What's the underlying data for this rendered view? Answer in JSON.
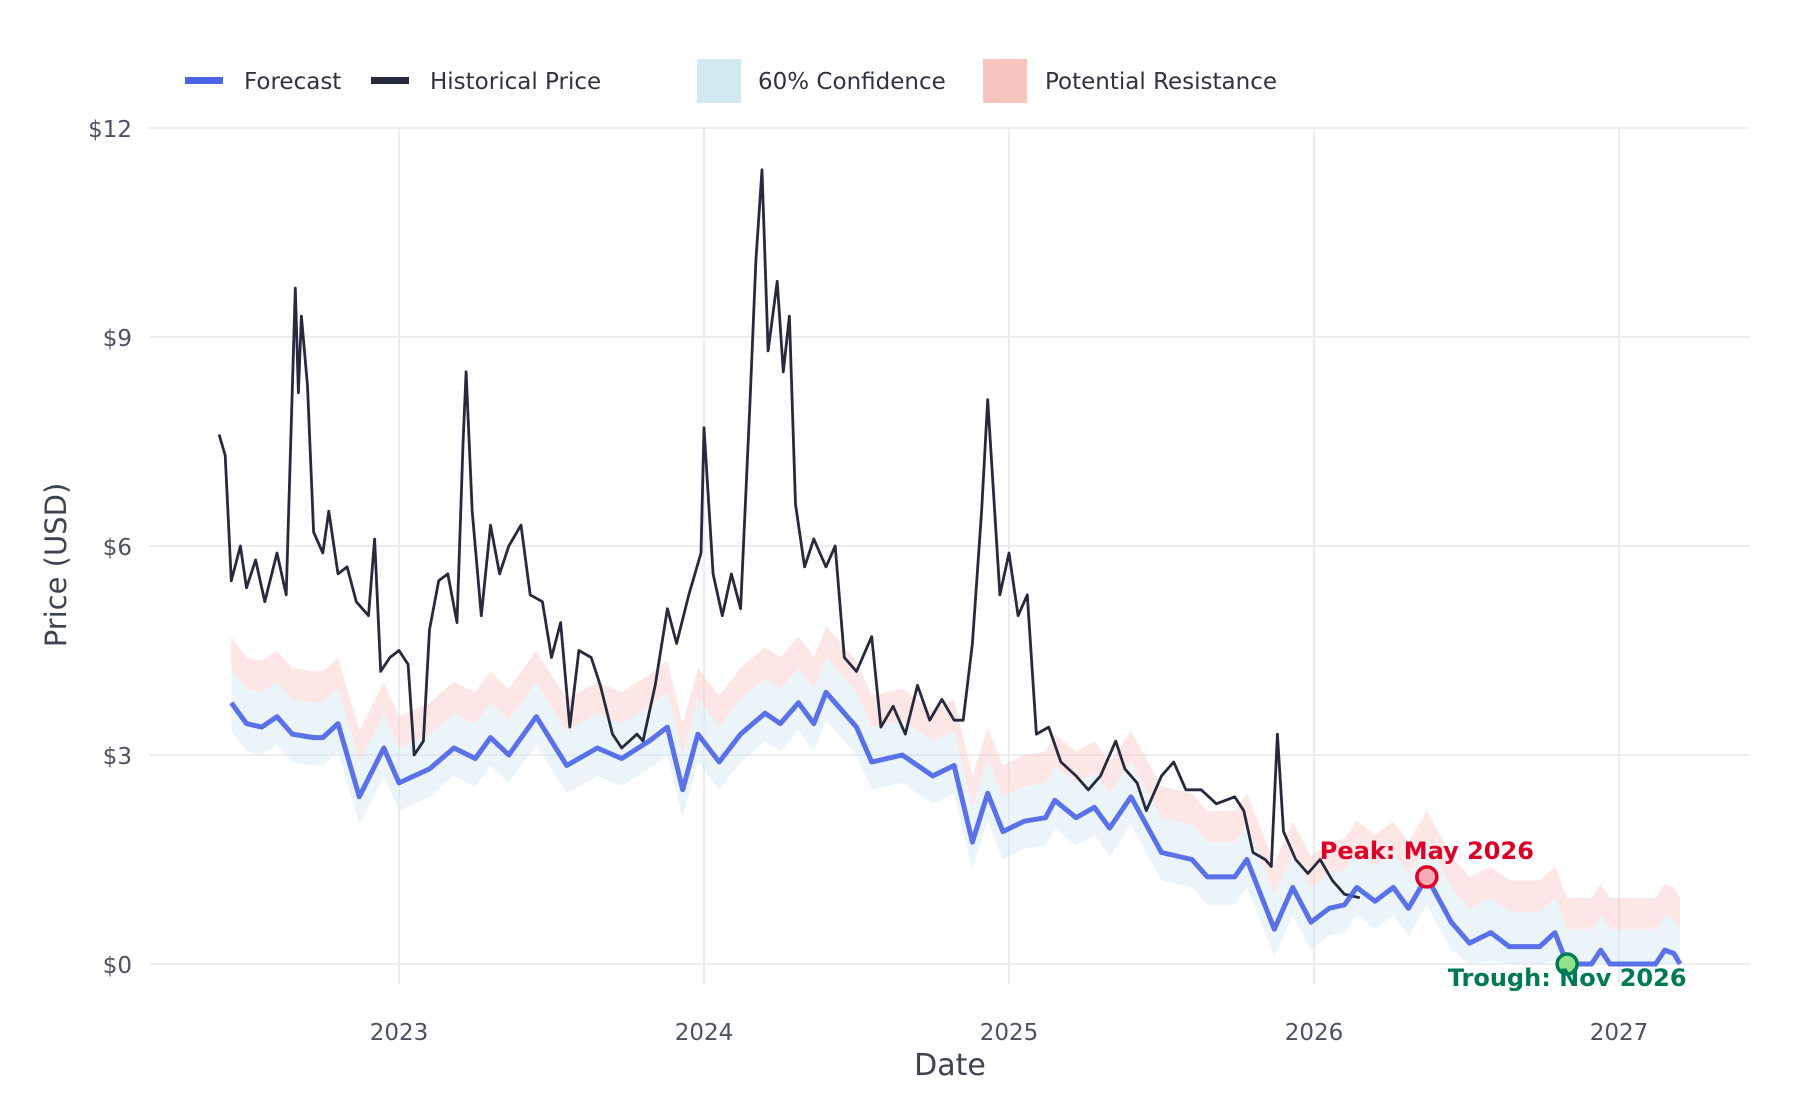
{
  "chart_data": {
    "type": "line",
    "title": "",
    "xlabel": "Date",
    "ylabel": "Price (USD)",
    "xlim": [
      2022.2,
      2027.43
    ],
    "ylim": [
      -0.55,
      12.05
    ],
    "x_ticks": [
      2023,
      2024,
      2025,
      2026,
      2027
    ],
    "x_tick_labels": [
      "2023",
      "2024",
      "2025",
      "2026",
      "2027"
    ],
    "y_ticks": [
      0,
      3,
      6,
      9,
      12
    ],
    "y_tick_labels": [
      "$0",
      "$3",
      "$6",
      "$9",
      "$12"
    ],
    "grid": true,
    "legend_position": "top-left",
    "legend": [
      {
        "label": "Forecast",
        "kind": "line",
        "color": "#4a63e7"
      },
      {
        "label": "Historical Price",
        "kind": "line",
        "color": "#272a3f"
      },
      {
        "label": "60% Confidence",
        "kind": "band",
        "color": "#d3e9f1"
      },
      {
        "label": "Potential Resistance",
        "kind": "band",
        "color": "#f7c4c1"
      }
    ],
    "confidence_band_offsets": [
      -0.4,
      0.5
    ],
    "resistance_band_offsets": [
      0.5,
      0.95
    ],
    "series": [
      {
        "name": "Historical Price",
        "color": "#272a3f",
        "points": [
          [
            2022.41,
            7.6
          ],
          [
            2022.43,
            7.3
          ],
          [
            2022.45,
            5.5
          ],
          [
            2022.48,
            6.0
          ],
          [
            2022.5,
            5.4
          ],
          [
            2022.53,
            5.8
          ],
          [
            2022.56,
            5.2
          ],
          [
            2022.6,
            5.9
          ],
          [
            2022.63,
            5.3
          ],
          [
            2022.66,
            9.7
          ],
          [
            2022.67,
            8.2
          ],
          [
            2022.68,
            9.3
          ],
          [
            2022.7,
            8.3
          ],
          [
            2022.72,
            6.2
          ],
          [
            2022.75,
            5.9
          ],
          [
            2022.77,
            6.5
          ],
          [
            2022.8,
            5.6
          ],
          [
            2022.83,
            5.7
          ],
          [
            2022.86,
            5.2
          ],
          [
            2022.9,
            5.0
          ],
          [
            2022.92,
            6.1
          ],
          [
            2022.94,
            4.2
          ],
          [
            2022.97,
            4.4
          ],
          [
            2023.0,
            4.5
          ],
          [
            2023.03,
            4.3
          ],
          [
            2023.05,
            3.0
          ],
          [
            2023.08,
            3.2
          ],
          [
            2023.1,
            4.8
          ],
          [
            2023.13,
            5.5
          ],
          [
            2023.16,
            5.6
          ],
          [
            2023.19,
            4.9
          ],
          [
            2023.21,
            7.5
          ],
          [
            2023.22,
            8.5
          ],
          [
            2023.24,
            6.5
          ],
          [
            2023.27,
            5.0
          ],
          [
            2023.3,
            6.3
          ],
          [
            2023.33,
            5.6
          ],
          [
            2023.36,
            6.0
          ],
          [
            2023.4,
            6.3
          ],
          [
            2023.43,
            5.3
          ],
          [
            2023.47,
            5.2
          ],
          [
            2023.5,
            4.4
          ],
          [
            2023.53,
            4.9
          ],
          [
            2023.56,
            3.4
          ],
          [
            2023.59,
            4.5
          ],
          [
            2023.63,
            4.4
          ],
          [
            2023.66,
            4.0
          ],
          [
            2023.7,
            3.3
          ],
          [
            2023.73,
            3.1
          ],
          [
            2023.78,
            3.3
          ],
          [
            2023.8,
            3.2
          ],
          [
            2023.84,
            4.0
          ],
          [
            2023.88,
            5.1
          ],
          [
            2023.91,
            4.6
          ],
          [
            2023.95,
            5.3
          ],
          [
            2023.99,
            5.9
          ],
          [
            2024.0,
            7.7
          ],
          [
            2024.03,
            5.6
          ],
          [
            2024.06,
            5.0
          ],
          [
            2024.09,
            5.6
          ],
          [
            2024.12,
            5.1
          ],
          [
            2024.15,
            8.0
          ],
          [
            2024.17,
            10.1
          ],
          [
            2024.19,
            11.4
          ],
          [
            2024.21,
            8.8
          ],
          [
            2024.24,
            9.8
          ],
          [
            2024.26,
            8.5
          ],
          [
            2024.28,
            9.3
          ],
          [
            2024.3,
            6.6
          ],
          [
            2024.33,
            5.7
          ],
          [
            2024.36,
            6.1
          ],
          [
            2024.4,
            5.7
          ],
          [
            2024.43,
            6.0
          ],
          [
            2024.46,
            4.4
          ],
          [
            2024.5,
            4.2
          ],
          [
            2024.55,
            4.7
          ],
          [
            2024.58,
            3.4
          ],
          [
            2024.62,
            3.7
          ],
          [
            2024.66,
            3.3
          ],
          [
            2024.7,
            4.0
          ],
          [
            2024.74,
            3.5
          ],
          [
            2024.78,
            3.8
          ],
          [
            2024.82,
            3.5
          ],
          [
            2024.85,
            3.5
          ],
          [
            2024.88,
            4.6
          ],
          [
            2024.91,
            6.5
          ],
          [
            2024.93,
            8.1
          ],
          [
            2024.95,
            6.7
          ],
          [
            2024.97,
            5.3
          ],
          [
            2025.0,
            5.9
          ],
          [
            2025.03,
            5.0
          ],
          [
            2025.06,
            5.3
          ],
          [
            2025.09,
            3.3
          ],
          [
            2025.13,
            3.4
          ],
          [
            2025.17,
            2.9
          ],
          [
            2025.22,
            2.7
          ],
          [
            2025.26,
            2.5
          ],
          [
            2025.3,
            2.7
          ],
          [
            2025.35,
            3.2
          ],
          [
            2025.38,
            2.8
          ],
          [
            2025.42,
            2.6
          ],
          [
            2025.45,
            2.2
          ],
          [
            2025.5,
            2.7
          ],
          [
            2025.54,
            2.9
          ],
          [
            2025.58,
            2.5
          ],
          [
            2025.63,
            2.5
          ],
          [
            2025.68,
            2.3
          ],
          [
            2025.74,
            2.4
          ],
          [
            2025.77,
            2.2
          ],
          [
            2025.8,
            1.6
          ],
          [
            2025.84,
            1.5
          ],
          [
            2025.86,
            1.4
          ],
          [
            2025.88,
            3.3
          ],
          [
            2025.9,
            1.9
          ],
          [
            2025.94,
            1.5
          ],
          [
            2025.98,
            1.3
          ],
          [
            2026.02,
            1.5
          ],
          [
            2026.06,
            1.2
          ],
          [
            2026.1,
            1.0
          ],
          [
            2026.15,
            0.95
          ]
        ]
      },
      {
        "name": "Forecast",
        "color": "#4a63e7",
        "points": [
          [
            2022.45,
            3.75
          ],
          [
            2022.5,
            3.45
          ],
          [
            2022.55,
            3.4
          ],
          [
            2022.6,
            3.55
          ],
          [
            2022.65,
            3.3
          ],
          [
            2022.72,
            3.25
          ],
          [
            2022.75,
            3.25
          ],
          [
            2022.8,
            3.45
          ],
          [
            2022.87,
            2.4
          ],
          [
            2022.95,
            3.1
          ],
          [
            2023.0,
            2.6
          ],
          [
            2023.1,
            2.8
          ],
          [
            2023.18,
            3.1
          ],
          [
            2023.25,
            2.95
          ],
          [
            2023.3,
            3.25
          ],
          [
            2023.36,
            3.0
          ],
          [
            2023.45,
            3.55
          ],
          [
            2023.55,
            2.85
          ],
          [
            2023.65,
            3.1
          ],
          [
            2023.73,
            2.95
          ],
          [
            2023.82,
            3.2
          ],
          [
            2023.88,
            3.4
          ],
          [
            2023.93,
            2.5
          ],
          [
            2023.98,
            3.3
          ],
          [
            2024.05,
            2.9
          ],
          [
            2024.12,
            3.3
          ],
          [
            2024.2,
            3.6
          ],
          [
            2024.25,
            3.45
          ],
          [
            2024.31,
            3.75
          ],
          [
            2024.36,
            3.45
          ],
          [
            2024.4,
            3.9
          ],
          [
            2024.5,
            3.4
          ],
          [
            2024.55,
            2.9
          ],
          [
            2024.65,
            3.0
          ],
          [
            2024.75,
            2.7
          ],
          [
            2024.82,
            2.85
          ],
          [
            2024.88,
            1.75
          ],
          [
            2024.93,
            2.45
          ],
          [
            2024.98,
            1.9
          ],
          [
            2025.05,
            2.05
          ],
          [
            2025.12,
            2.1
          ],
          [
            2025.15,
            2.35
          ],
          [
            2025.22,
            2.1
          ],
          [
            2025.28,
            2.25
          ],
          [
            2025.33,
            1.95
          ],
          [
            2025.4,
            2.4
          ],
          [
            2025.5,
            1.6
          ],
          [
            2025.6,
            1.5
          ],
          [
            2025.65,
            1.25
          ],
          [
            2025.74,
            1.25
          ],
          [
            2025.78,
            1.5
          ],
          [
            2025.87,
            0.5
          ],
          [
            2025.93,
            1.1
          ],
          [
            2025.99,
            0.6
          ],
          [
            2026.05,
            0.8
          ],
          [
            2026.1,
            0.85
          ],
          [
            2026.14,
            1.1
          ],
          [
            2026.2,
            0.9
          ],
          [
            2026.26,
            1.1
          ],
          [
            2026.31,
            0.8
          ],
          [
            2026.37,
            1.25
          ],
          [
            2026.45,
            0.6
          ],
          [
            2026.51,
            0.3
          ],
          [
            2026.58,
            0.45
          ],
          [
            2026.64,
            0.25
          ],
          [
            2026.74,
            0.25
          ],
          [
            2026.79,
            0.45
          ],
          [
            2026.83,
            0.0
          ],
          [
            2026.91,
            0.0
          ],
          [
            2026.94,
            0.2
          ],
          [
            2026.97,
            0.0
          ],
          [
            2027.12,
            0.0
          ],
          [
            2027.15,
            0.2
          ],
          [
            2027.18,
            0.15
          ],
          [
            2027.2,
            0.0
          ]
        ]
      }
    ],
    "annotations": [
      {
        "text": "Peak: May 2026",
        "x": 2026.37,
        "y": 1.25,
        "color": "#dc0028",
        "fill": "#f6a9b6"
      },
      {
        "text": "Trough: Nov 2026",
        "x": 2026.83,
        "y": 0.0,
        "color": "#007a55",
        "fill": "#8ee28a"
      }
    ]
  }
}
